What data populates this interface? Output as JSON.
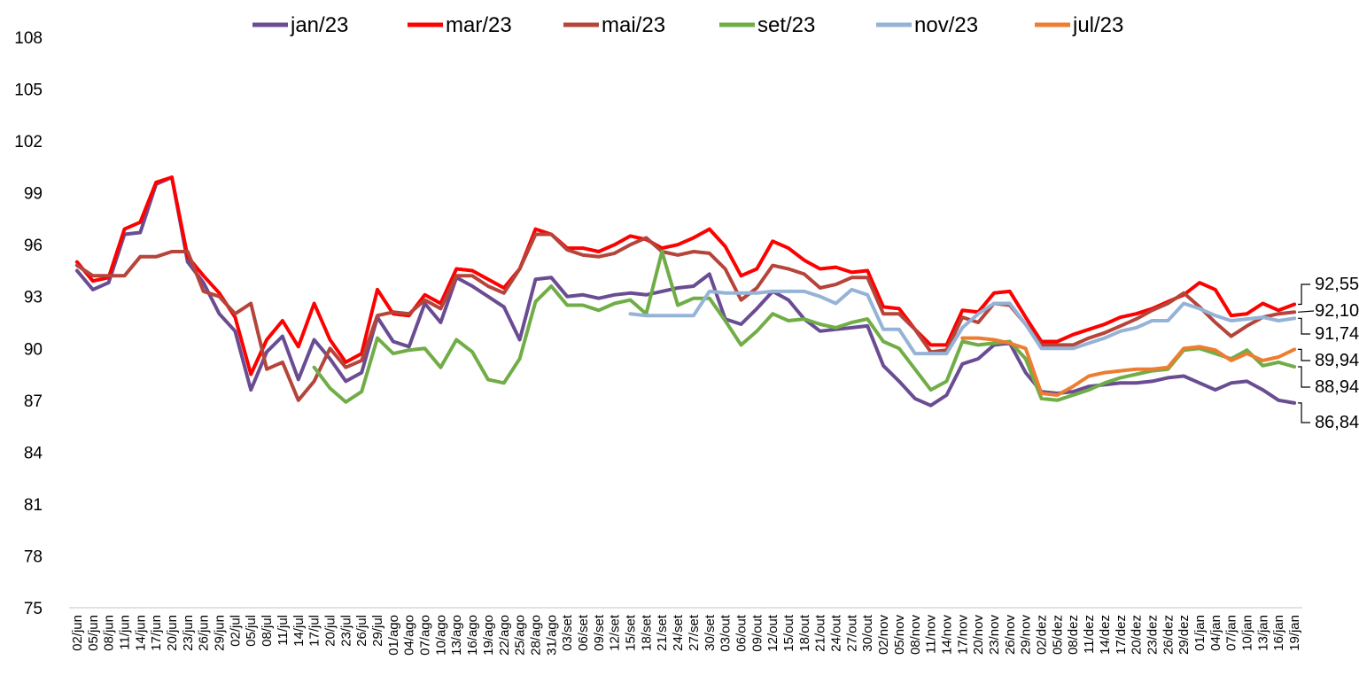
{
  "chart_data": {
    "type": "line",
    "title": "",
    "xlabel": "",
    "ylabel": "",
    "ylim": [
      75,
      108
    ],
    "yticks": [
      75,
      78,
      81,
      84,
      87,
      90,
      93,
      96,
      99,
      102,
      105,
      108
    ],
    "grid": false,
    "legend": "top",
    "x": [
      "02/jun",
      "05/jun",
      "08/jun",
      "11/jun",
      "14/jun",
      "17/jun",
      "20/jun",
      "23/jun",
      "26/jun",
      "29/jun",
      "02/jul",
      "05/jul",
      "08/jul",
      "11/jul",
      "14/jul",
      "17/jul",
      "20/jul",
      "23/jul",
      "26/jul",
      "29/jul",
      "01/ago",
      "04/ago",
      "07/ago",
      "10/ago",
      "13/ago",
      "16/ago",
      "19/ago",
      "22/ago",
      "25/ago",
      "28/ago",
      "31/ago",
      "03/set",
      "06/set",
      "09/set",
      "12/set",
      "15/set",
      "18/set",
      "21/set",
      "24/set",
      "27/set",
      "30/set",
      "03/out",
      "06/out",
      "09/out",
      "12/out",
      "15/out",
      "18/out",
      "21/out",
      "24/out",
      "27/out",
      "30/out",
      "02/nov",
      "05/nov",
      "08/nov",
      "11/nov",
      "14/nov",
      "17/nov",
      "20/nov",
      "23/nov",
      "26/nov",
      "29/nov",
      "02/dez",
      "05/dez",
      "08/dez",
      "11/dez",
      "14/dez",
      "17/dez",
      "20/dez",
      "23/dez",
      "26/dez",
      "29/dez",
      "01/jan",
      "04/jan",
      "07/jan",
      "10/jan",
      "13/jan",
      "16/jan",
      "19/jan"
    ],
    "series": [
      {
        "name": "jan/23",
        "color": "#6A4C93",
        "values": [
          94.5,
          93.4,
          93.8,
          96.6,
          96.7,
          99.5,
          99.9,
          95.0,
          93.8,
          92.0,
          91.0,
          87.6,
          89.8,
          90.7,
          88.2,
          90.5,
          89.4,
          88.1,
          88.6,
          91.8,
          90.4,
          90.1,
          92.6,
          91.5,
          94.1,
          93.6,
          93.0,
          92.4,
          90.5,
          94.0,
          94.1,
          93.0,
          93.1,
          92.9,
          93.1,
          93.2,
          93.1,
          93.3,
          93.5,
          93.6,
          94.3,
          91.7,
          91.4,
          92.3,
          93.3,
          92.8,
          91.7,
          91.0,
          91.1,
          91.2,
          91.3,
          89.0,
          88.1,
          87.1,
          86.7,
          87.3,
          89.1,
          89.4,
          90.2,
          90.3,
          88.6,
          87.5,
          87.4,
          87.5,
          87.8,
          87.9,
          88.0,
          88.0,
          88.1,
          88.3,
          88.4,
          88.0,
          87.6,
          88.0,
          88.1,
          87.6,
          87.0,
          86.84
        ]
      },
      {
        "name": "mar/23",
        "color": "#FF0000",
        "values": [
          95.0,
          93.9,
          94.1,
          96.9,
          97.3,
          99.6,
          99.9,
          95.3,
          94.2,
          93.2,
          91.8,
          88.5,
          90.5,
          91.6,
          90.1,
          92.6,
          90.5,
          89.2,
          89.7,
          93.4,
          92.0,
          91.9,
          93.1,
          92.6,
          94.6,
          94.5,
          94.0,
          93.5,
          94.6,
          96.9,
          96.6,
          95.8,
          95.8,
          95.6,
          96.0,
          96.5,
          96.3,
          95.8,
          96.0,
          96.4,
          96.9,
          95.9,
          94.2,
          94.6,
          96.2,
          95.8,
          95.1,
          94.6,
          94.7,
          94.4,
          94.5,
          92.4,
          92.3,
          91.1,
          90.2,
          90.2,
          92.2,
          92.1,
          93.2,
          93.3,
          91.8,
          90.4,
          90.4,
          90.8,
          91.1,
          91.4,
          91.8,
          92.0,
          92.3,
          92.7,
          93.1,
          93.8,
          93.4,
          91.9,
          92.0,
          92.6,
          92.2,
          92.55
        ]
      },
      {
        "name": "mai/23",
        "color": "#B5443B",
        "values": [
          94.8,
          94.2,
          94.2,
          94.2,
          95.3,
          95.3,
          95.6,
          95.6,
          93.3,
          93.0,
          92.0,
          92.6,
          88.8,
          89.2,
          87.0,
          88.1,
          90.0,
          88.9,
          89.3,
          91.9,
          92.1,
          92.0,
          92.8,
          92.3,
          94.2,
          94.2,
          93.6,
          93.2,
          94.6,
          96.6,
          96.6,
          95.7,
          95.4,
          95.3,
          95.5,
          96.0,
          96.4,
          95.6,
          95.4,
          95.6,
          95.5,
          94.6,
          92.8,
          93.5,
          94.8,
          94.6,
          94.3,
          93.5,
          93.7,
          94.1,
          94.1,
          92.0,
          92.0,
          91.1,
          89.8,
          89.9,
          91.8,
          91.5,
          92.6,
          92.5,
          91.4,
          90.2,
          90.2,
          90.2,
          90.6,
          90.9,
          91.3,
          91.7,
          92.2,
          92.6,
          93.2,
          92.4,
          91.5,
          90.7,
          91.3,
          91.8,
          92.0,
          92.1
        ]
      },
      {
        "name": "set/23",
        "color": "#70AD47",
        "values": [
          null,
          null,
          null,
          null,
          null,
          null,
          null,
          null,
          null,
          null,
          null,
          null,
          null,
          null,
          null,
          88.9,
          87.7,
          86.9,
          87.5,
          90.6,
          89.7,
          89.9,
          90.0,
          88.9,
          90.5,
          89.8,
          88.2,
          88.0,
          89.4,
          92.7,
          93.6,
          92.5,
          92.5,
          92.2,
          92.6,
          92.8,
          92.0,
          95.6,
          92.5,
          92.9,
          92.9,
          91.6,
          90.2,
          91.0,
          92.0,
          91.6,
          91.7,
          91.4,
          91.2,
          91.5,
          91.7,
          90.4,
          90.0,
          88.8,
          87.6,
          88.1,
          90.4,
          90.2,
          90.3,
          90.4,
          89.4,
          87.1,
          87.0,
          87.3,
          87.6,
          88.0,
          88.3,
          88.5,
          88.7,
          88.8,
          89.9,
          90.0,
          89.7,
          89.4,
          89.9,
          89.0,
          89.2,
          88.94
        ]
      },
      {
        "name": "nov/23",
        "color": "#95B3D7",
        "values": [
          null,
          null,
          null,
          null,
          null,
          null,
          null,
          null,
          null,
          null,
          null,
          null,
          null,
          null,
          null,
          null,
          null,
          null,
          null,
          null,
          null,
          null,
          null,
          null,
          null,
          null,
          null,
          null,
          null,
          null,
          null,
          null,
          null,
          null,
          null,
          92.0,
          91.9,
          91.9,
          91.9,
          91.9,
          93.3,
          93.2,
          93.2,
          93.2,
          93.3,
          93.3,
          93.3,
          93.0,
          92.6,
          93.4,
          93.1,
          91.1,
          91.1,
          89.7,
          89.7,
          89.7,
          91.2,
          92.0,
          92.6,
          92.6,
          91.4,
          90.0,
          90.0,
          90.0,
          90.3,
          90.6,
          91.0,
          91.2,
          91.6,
          91.6,
          92.6,
          92.3,
          91.9,
          91.6,
          91.7,
          91.8,
          91.6,
          91.74
        ]
      },
      {
        "name": "jul/23",
        "color": "#ED7D31",
        "values": [
          null,
          null,
          null,
          null,
          null,
          null,
          null,
          null,
          null,
          null,
          null,
          null,
          null,
          null,
          null,
          null,
          null,
          null,
          null,
          null,
          null,
          null,
          null,
          null,
          null,
          null,
          null,
          null,
          null,
          null,
          null,
          null,
          null,
          null,
          null,
          null,
          null,
          null,
          null,
          null,
          null,
          null,
          null,
          null,
          null,
          null,
          null,
          null,
          null,
          null,
          null,
          null,
          null,
          null,
          null,
          null,
          90.6,
          90.6,
          90.5,
          90.3,
          90.0,
          87.4,
          87.3,
          87.8,
          88.4,
          88.6,
          88.7,
          88.8,
          88.8,
          88.9,
          90.0,
          90.1,
          89.9,
          89.3,
          89.7,
          89.3,
          89.5,
          89.94
        ]
      }
    ],
    "end_labels": [
      "92,55",
      "92,10",
      "91,74",
      "89,94",
      "88,94",
      "86,84"
    ]
  }
}
